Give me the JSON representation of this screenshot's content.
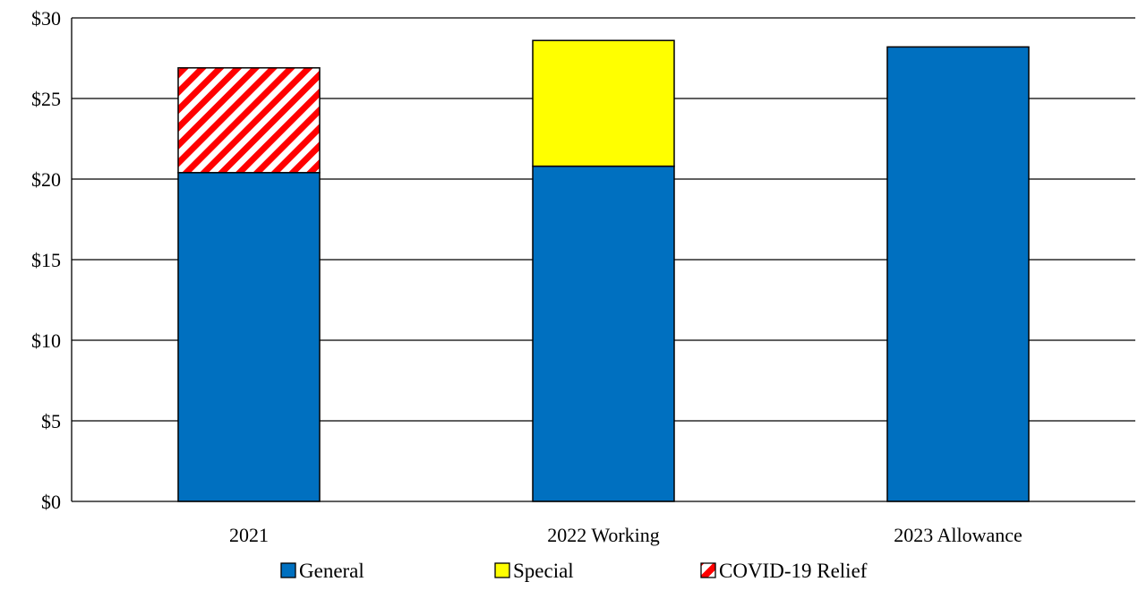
{
  "chart_data": {
    "type": "bar",
    "stacked": true,
    "categories": [
      "2021",
      "2022 Working",
      "2023 Allowance"
    ],
    "series": [
      {
        "name": "General",
        "values": [
          20.4,
          20.8,
          28.2
        ],
        "color": "#0070C0",
        "pattern": "solid"
      },
      {
        "name": "Special",
        "values": [
          0,
          7.8,
          0
        ],
        "color": "#FFFF00",
        "pattern": "solid"
      },
      {
        "name": "COVID-19 Relief",
        "values": [
          6.5,
          0,
          0
        ],
        "color": "#FF0000",
        "pattern": "diagonal-stripes"
      }
    ],
    "ylim": [
      0,
      30
    ],
    "yticks": [
      0,
      5,
      10,
      15,
      20,
      25,
      30
    ],
    "ytick_labels": [
      "$0",
      "$5",
      "$10",
      "$15",
      "$20",
      "$25",
      "$30"
    ],
    "grid": true,
    "legend_position": "bottom"
  }
}
